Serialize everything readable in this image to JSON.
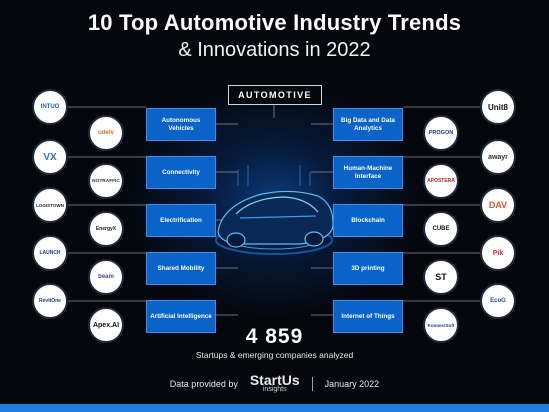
{
  "title_line1": "10 Top Automotive Industry Trends",
  "title_line2": "& Innovations in 2022",
  "category": "AUTOMOTIVE",
  "trends_left": [
    "Autonomous Vehicles",
    "Connectivity",
    "Electrification",
    "Shared Mobility",
    "Artificial Intelligence"
  ],
  "trends_right": [
    "Big Data and Data Analytics",
    "Human-Machine Interface",
    "Blockchain",
    "3D printing",
    "Internet of Things"
  ],
  "startups_left_outer": [
    "INTUO",
    "VX",
    "LOGISTOWN",
    "LAUNCH",
    "RevItOne"
  ],
  "startups_left_inner": [
    "udelv",
    "NOTRAFFIC",
    "EnergyX",
    "beam",
    "Apex.AI"
  ],
  "startups_right_inner": [
    "PROGON",
    "APOSTERA",
    "CUBE",
    "ST",
    "KonnectSoft"
  ],
  "startups_right_outer": [
    "Unit8",
    "awayr",
    "DAV",
    "Pik",
    "EcoG"
  ],
  "count": "4 859",
  "count_caption": "Startups & emerging companies analyzed",
  "footer": {
    "provided": "Data provided by",
    "brand": "StartUs",
    "brand_sub": "insights",
    "date": "January 2022"
  },
  "colors": {
    "trend_box": "#0a63c9",
    "accent": "#1d7ee0",
    "background": "#05070c"
  }
}
